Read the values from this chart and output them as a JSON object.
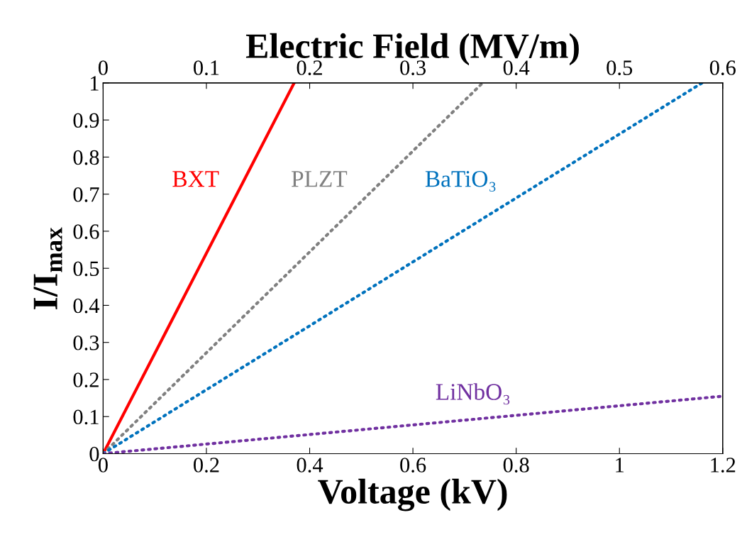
{
  "chart_data": {
    "type": "line",
    "xlabel": "Voltage (kV)",
    "ylabel": "I/I$_{max}$",
    "x2label": "Electric Field (MV/m)",
    "xlim": [
      0,
      1.2
    ],
    "xticks": [
      0,
      0.2,
      0.4,
      0.6,
      0.8,
      1,
      1.2
    ],
    "ylim": [
      0,
      1
    ],
    "yticks": [
      0,
      0.1,
      0.2,
      0.3,
      0.4,
      0.5,
      0.6,
      0.7,
      0.8,
      0.9,
      1
    ],
    "x2lim": [
      0,
      0.6
    ],
    "x2ticks": [
      0,
      0.1,
      0.2,
      0.3,
      0.4,
      0.5,
      0.6
    ],
    "grid": false,
    "legend": false,
    "series": [
      {
        "name": "BXT",
        "color": "#ff0000",
        "line_style": "solid",
        "x": [
          0,
          0.37
        ],
        "values": [
          0,
          1
        ]
      },
      {
        "name": "PLZT",
        "color": "#808080",
        "line_style": "dotted",
        "x": [
          0,
          0.735
        ],
        "values": [
          0,
          1
        ]
      },
      {
        "name": "BaTiO₃",
        "color": "#0072bd",
        "line_style": "dotted",
        "x": [
          0,
          1.16
        ],
        "values": [
          0,
          1
        ]
      },
      {
        "name": "LiNbO₃",
        "color": "#7030a0",
        "line_style": "dotted",
        "x": [
          0,
          1.2
        ],
        "values": [
          0,
          0.155
        ]
      }
    ]
  }
}
